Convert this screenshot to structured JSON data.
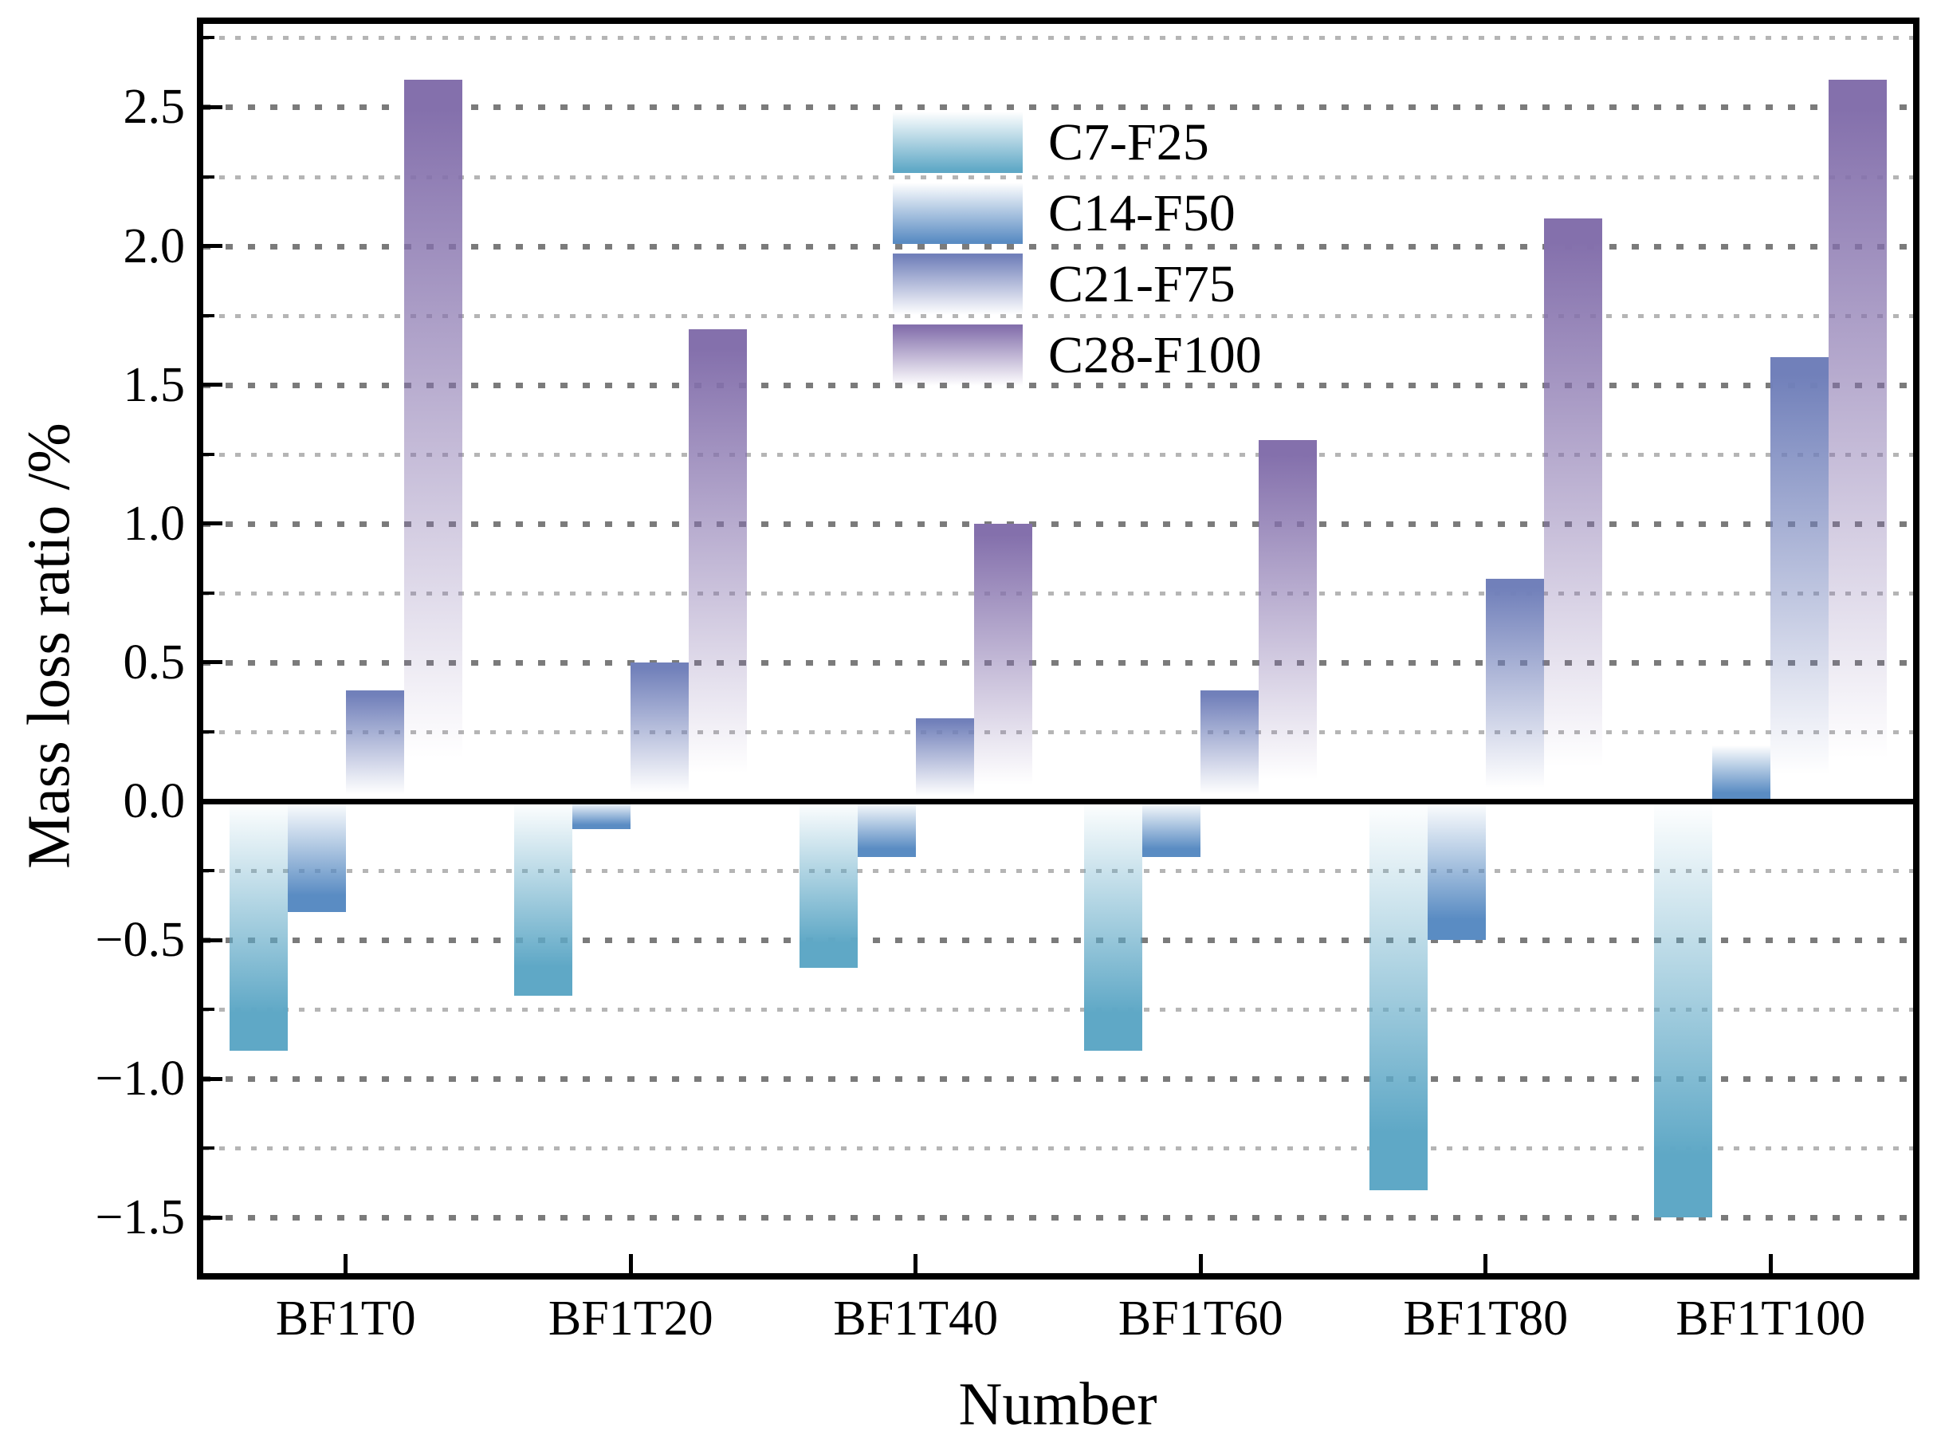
{
  "chart_data": {
    "type": "bar",
    "title": "",
    "xlabel": "Number",
    "ylabel": "Mass loss ratio /%",
    "categories": [
      "BF1T0",
      "BF1T20",
      "BF1T40",
      "BF1T60",
      "BF1T80",
      "BF1T100"
    ],
    "series": [
      {
        "name": "C7-F25",
        "color": "#5fa8c6",
        "white_end": "top",
        "values": [
          -0.9,
          -0.7,
          -0.6,
          -0.9,
          -1.4,
          -1.5
        ]
      },
      {
        "name": "C14-F50",
        "color": "#5a8cc3",
        "white_end": "top",
        "values": [
          -0.4,
          -0.1,
          -0.2,
          -0.2,
          -0.5,
          0.2
        ]
      },
      {
        "name": "C21-F75",
        "color": "#7180ba",
        "white_end": "bottom",
        "values": [
          0.4,
          0.5,
          0.3,
          0.4,
          0.8,
          1.6
        ]
      },
      {
        "name": "C28-F100",
        "color": "#8470ac",
        "white_end": "bottom",
        "values": [
          2.6,
          1.7,
          1.0,
          1.3,
          2.1,
          2.6
        ]
      }
    ],
    "ylim": [
      -1.7,
      2.8
    ],
    "yticks": [
      {
        "v": 2.5,
        "label": "2.5"
      },
      {
        "v": 2.0,
        "label": "2.0"
      },
      {
        "v": 1.5,
        "label": "1.5"
      },
      {
        "v": 1.0,
        "label": "1.0"
      },
      {
        "v": 0.5,
        "label": "0.5"
      },
      {
        "v": 0.0,
        "label": "0.0"
      },
      {
        "v": -0.5,
        "label": "-0.5"
      },
      {
        "v": -1.0,
        "label": "-1.0"
      },
      {
        "v": -1.5,
        "label": "-1.5"
      }
    ],
    "ytick_major_step": 0.5,
    "ytick_minor_step": 0.25,
    "grid": {
      "style": "horizontal-dotted",
      "major_color": "#7b7b7b",
      "minor_color": "#b5b5b5"
    },
    "zero_line": {
      "present": true,
      "color": "#000000"
    },
    "legend": {
      "position": "upper-middle",
      "entries": [
        "C7-F25",
        "C14-F50",
        "C21-F75",
        "C28-F100"
      ]
    }
  }
}
